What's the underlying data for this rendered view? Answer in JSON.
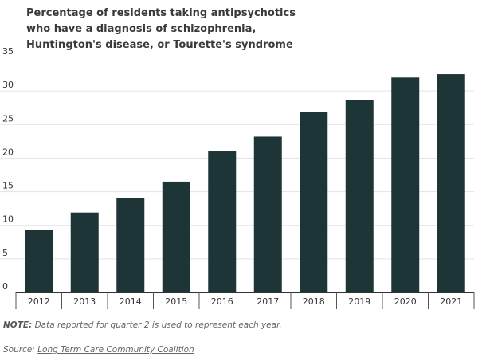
{
  "chart_data": {
    "type": "bar",
    "title_lines": [
      "Percentage of residents taking antipsychotics",
      "who have a diagnosis of schizophrenia,",
      "Huntington's disease, or Tourette's syndrome"
    ],
    "categories": [
      "2012",
      "2013",
      "2014",
      "2015",
      "2016",
      "2017",
      "2018",
      "2019",
      "2020",
      "2021"
    ],
    "values": [
      9.3,
      11.9,
      14.0,
      16.5,
      21.0,
      23.2,
      26.9,
      28.6,
      32.0,
      32.5
    ],
    "ylim": [
      0,
      35
    ],
    "yticks": [
      "0",
      "5",
      "10",
      "15",
      "20",
      "25",
      "30",
      "35"
    ],
    "grid": true,
    "bar_color": "#1e3538"
  },
  "footer": {
    "note_label": "NOTE:",
    "note_text": " Data reported for quarter 2 is used to represent each year.",
    "source_label": "Source: ",
    "source_link": "Long Term Care Community Coalition"
  }
}
